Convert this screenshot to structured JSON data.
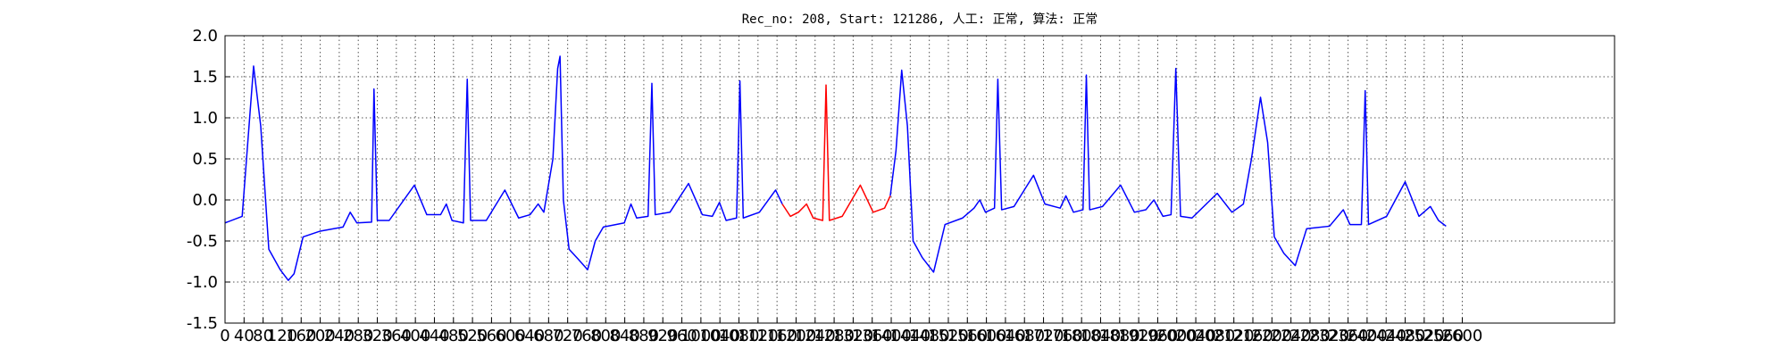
{
  "chart_data": {
    "type": "line",
    "title": "Rec_no: 208, Start: 121286, 人工: 正常, 算法: 正常",
    "xlim": [
      0,
      2920
    ],
    "ylim": [
      -1.5,
      2.0
    ],
    "yticks": [
      -1.5,
      {
        "value": -1.0,
        "label": "-1.0"
      },
      -0.5,
      {
        "value": 0,
        "label": "0.0"
      },
      0.5,
      {
        "value": 1.0,
        "label": "1.0"
      },
      1.5,
      {
        "value": 2.0,
        "label": "2.0"
      }
    ],
    "xticks": [
      0,
      40,
      80,
      120,
      160,
      200,
      240,
      280,
      320,
      360,
      400,
      440,
      480,
      520,
      560,
      600,
      640,
      680,
      720,
      760,
      800,
      840,
      880,
      920,
      960,
      1000,
      1040,
      1080,
      1120,
      1160,
      1200,
      1240,
      1280,
      1320,
      1360,
      1400,
      1440,
      1480,
      1520,
      1560,
      1600,
      1640,
      1680,
      1720,
      1760,
      1800,
      1840,
      1880,
      1920,
      1960,
      2000,
      2040,
      2080,
      2120,
      2160,
      2200,
      2240,
      2280,
      2320,
      2360,
      2400,
      2440,
      2480,
      2520,
      2560,
      2600
    ],
    "grid": true,
    "series": [
      {
        "color": "#0000ff",
        "x": [
          0,
          36,
          60,
          75,
          92,
          116,
          133,
          145,
          164,
          200,
          248,
          263,
          277,
          308,
          313,
          320,
          345,
          398,
          424,
          453,
          465,
          477,
          501,
          509,
          516,
          549,
          588,
          617,
          641,
          658,
          670,
          689,
          699,
          704,
          711,
          723,
          742,
          762,
          778,
          795,
          839,
          853,
          865,
          889,
          897,
          904,
          935,
          974,
          1003,
          1024,
          1039,
          1053,
          1075,
          1082,
          1089,
          1123,
          1157,
          1171,
          1280,
          1398,
          1410,
          1422,
          1434,
          1446,
          1465,
          1489,
          1513,
          1550,
          1574,
          1586,
          1598,
          1617,
          1624,
          1632,
          1658,
          1699,
          1723,
          1755,
          1767,
          1783,
          1803,
          1810,
          1817,
          1844,
          1882,
          1911,
          1935,
          1952,
          1971,
          1988,
          1998,
          2008,
          2032,
          2085,
          2116,
          2140,
          2157,
          2176,
          2191,
          2205,
          2225,
          2249,
          2273,
          2321,
          2350,
          2364,
          2388,
          2396,
          2403,
          2441,
          2480,
          2509,
          2533,
          2550,
          2566
        ],
        "values": [
          -0.28,
          -0.2,
          1.63,
          0.9,
          -0.6,
          -0.85,
          -0.98,
          -0.9,
          -0.45,
          -0.38,
          -0.33,
          -0.15,
          -0.28,
          -0.27,
          1.35,
          -0.25,
          -0.25,
          0.18,
          -0.18,
          -0.18,
          -0.05,
          -0.25,
          -0.28,
          1.47,
          -0.25,
          -0.25,
          0.12,
          -0.22,
          -0.18,
          -0.05,
          -0.15,
          0.5,
          1.6,
          1.75,
          0.0,
          -0.6,
          -0.72,
          -0.85,
          -0.5,
          -0.33,
          -0.28,
          -0.05,
          -0.22,
          -0.2,
          1.42,
          -0.18,
          -0.15,
          0.2,
          -0.18,
          -0.2,
          -0.03,
          -0.25,
          -0.22,
          1.45,
          -0.22,
          -0.15,
          0.12,
          -0.05,
          null,
          0.05,
          0.6,
          1.58,
          0.9,
          -0.5,
          -0.7,
          -0.88,
          -0.3,
          -0.22,
          -0.1,
          0.0,
          -0.15,
          -0.1,
          1.47,
          -0.12,
          -0.08,
          0.3,
          -0.05,
          -0.1,
          0.05,
          -0.15,
          -0.12,
          1.52,
          -0.12,
          -0.08,
          0.18,
          -0.15,
          -0.12,
          0.0,
          -0.2,
          -0.18,
          1.6,
          -0.2,
          -0.22,
          0.08,
          -0.15,
          -0.05,
          0.5,
          1.25,
          0.7,
          -0.45,
          -0.65,
          -0.8,
          -0.35,
          -0.32,
          -0.12,
          -0.3,
          -0.3,
          1.33,
          -0.3,
          -0.2,
          0.22,
          -0.2,
          -0.08,
          -0.25,
          -0.32
        ]
      },
      {
        "color": "#ff0000",
        "x": [
          1171,
          1188,
          1205,
          1222,
          1236,
          1256,
          1263,
          1270,
          1297,
          1335,
          1362,
          1386,
          1398
        ],
        "values": [
          -0.05,
          -0.2,
          -0.15,
          -0.05,
          -0.22,
          -0.25,
          1.4,
          -0.25,
          -0.2,
          0.18,
          -0.15,
          -0.1,
          0.05
        ]
      }
    ]
  }
}
